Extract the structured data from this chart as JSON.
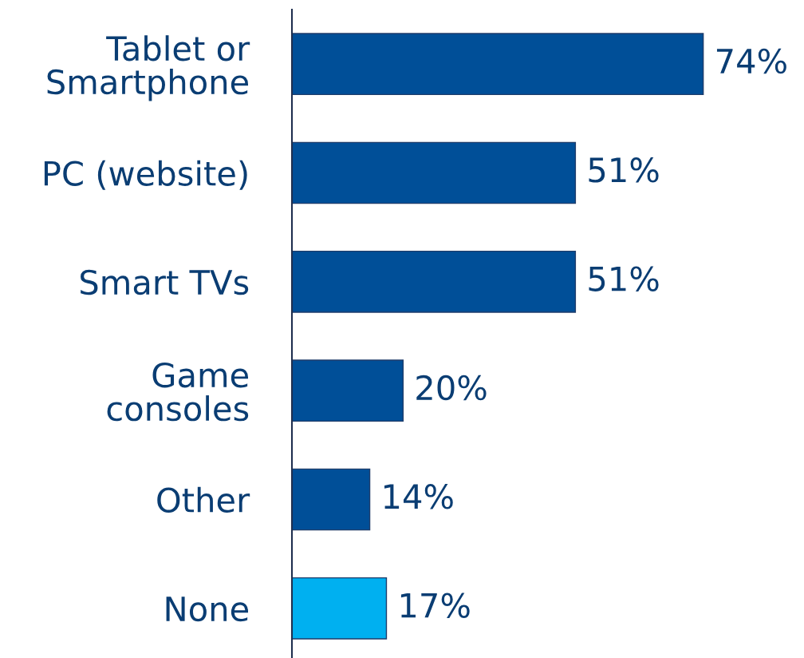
{
  "chart_data": {
    "type": "bar",
    "orientation": "horizontal",
    "categories": [
      "Tablet or\nSmartphone",
      "PC (website)",
      "Smart TVs",
      "Game\nconsoles",
      "Other",
      "None"
    ],
    "values": [
      74,
      51,
      51,
      20,
      14,
      17
    ],
    "value_labels": [
      "74%",
      "51%",
      "51%",
      "20%",
      "14%",
      "17%"
    ],
    "colors": [
      "#004f98",
      "#004f98",
      "#004f98",
      "#004f98",
      "#004f98",
      "#00b0f0"
    ],
    "tick_labels": "y",
    "grid": false,
    "legend": false
  }
}
